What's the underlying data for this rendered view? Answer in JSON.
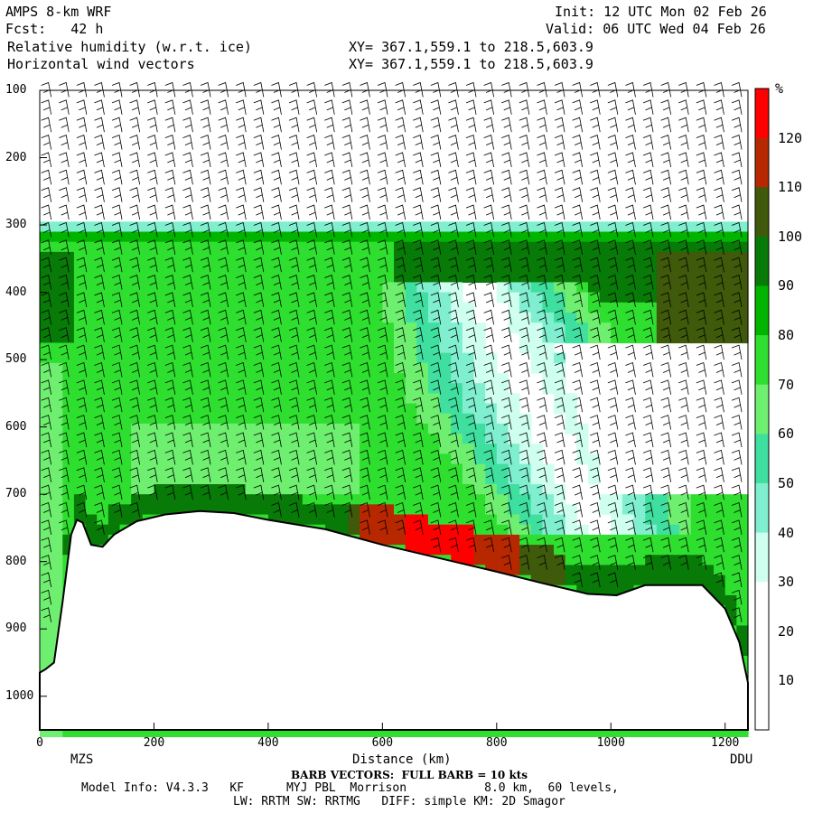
{
  "header": {
    "model": "AMPS 8-km WRF",
    "fcst": "Fcst:   42 h",
    "field1": "Relative humidity (w.r.t. ice)",
    "field2": "Horizontal wind vectors",
    "init": "Init: 12 UTC Mon 02 Feb 26",
    "valid": "Valid: 06 UTC Wed 04 Feb 26",
    "xy1": "XY= 367.1,559.1 to 218.5,603.9",
    "xy2": "XY= 367.1,559.1 to 218.5,603.9"
  },
  "footer": {
    "xlabel": "Distance (km)",
    "left_site": "MZS",
    "right_site": "DDU",
    "barb_note": "BARB VECTORS:  FULL BARB = 10 kts",
    "model_info": "Model Info: V4.3.3   KF      MYJ PBL  Morrison           8.0 km,  60 levels,",
    "physics": "LW: RRTM SW: RRTMG   DIFF: simple KM: 2D Smagor"
  },
  "colorbar": {
    "unit": "%",
    "levels": [
      10,
      20,
      30,
      40,
      50,
      60,
      70,
      80,
      90,
      100,
      110,
      120
    ],
    "colors": [
      "#ffffff",
      "#ffffff",
      "#ffffff",
      "#cfffef",
      "#7fefcf",
      "#3fdf9f",
      "#6fef6f",
      "#2fdf2f",
      "#00b400",
      "#087a08",
      "#3f5a0a",
      "#b82800",
      "#ff0000"
    ]
  },
  "chart_data": {
    "type": "heatmap",
    "title": "Relative humidity (w.r.t. ice)",
    "xlabel": "Distance (km)",
    "ylabel": "",
    "xlim": [
      0,
      1240
    ],
    "ylim": [
      1050,
      100
    ],
    "x_ticks": [
      0,
      200,
      400,
      600,
      800,
      1000,
      1200
    ],
    "y_ticks": [
      100,
      200,
      300,
      400,
      500,
      600,
      700,
      800,
      900,
      1000
    ],
    "terrain_surface_pressure": [
      [
        0,
        965
      ],
      [
        10,
        960
      ],
      [
        25,
        950
      ],
      [
        40,
        860
      ],
      [
        55,
        760
      ],
      [
        65,
        738
      ],
      [
        75,
        742
      ],
      [
        90,
        775
      ],
      [
        110,
        778
      ],
      [
        130,
        760
      ],
      [
        170,
        740
      ],
      [
        220,
        730
      ],
      [
        280,
        725
      ],
      [
        340,
        728
      ],
      [
        400,
        738
      ],
      [
        500,
        752
      ],
      [
        600,
        775
      ],
      [
        700,
        795
      ],
      [
        800,
        815
      ],
      [
        880,
        832
      ],
      [
        960,
        848
      ],
      [
        1010,
        850
      ],
      [
        1060,
        835
      ],
      [
        1160,
        835
      ],
      [
        1200,
        870
      ],
      [
        1225,
        920
      ],
      [
        1240,
        980
      ]
    ],
    "regions": [
      {
        "rh": 90,
        "x": [
          60,
          1240
        ],
        "p_top": 305,
        "p_bottom": 325
      },
      {
        "rh": 100,
        "x": [
          620,
          1240
        ],
        "p_top": 340,
        "p_bottom": 430
      },
      {
        "rh": 110,
        "x": [
          1140,
          1220
        ],
        "p_top": 350,
        "p_bottom": 480
      },
      {
        "rh": 40,
        "x": [
          600,
          1000
        ],
        "p_top": 400,
        "p_bottom": 700
      },
      {
        "rh": 30,
        "x": [
          860,
          1240
        ],
        "p_top": 480,
        "p_bottom": 680
      },
      {
        "rh": 120,
        "x": [
          560,
          940
        ],
        "p_top": 730,
        "p_bottom": 790
      }
    ]
  }
}
